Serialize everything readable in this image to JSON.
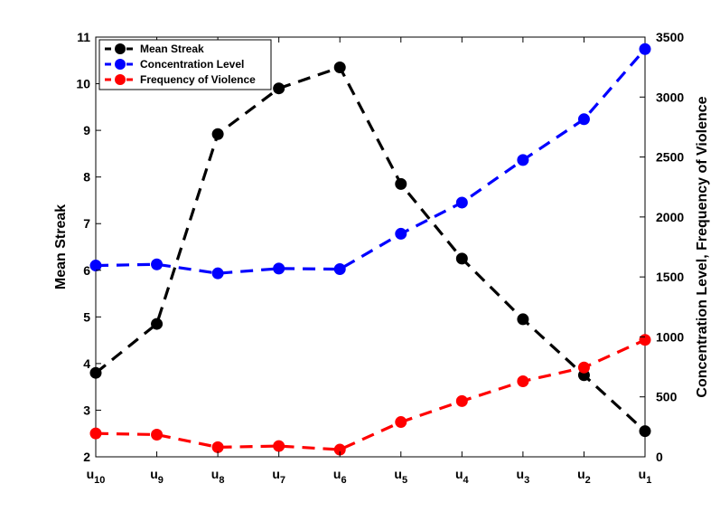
{
  "chart_data": {
    "type": "line",
    "categories": [
      {
        "base": "u",
        "sub": "10"
      },
      {
        "base": "u",
        "sub": "9"
      },
      {
        "base": "u",
        "sub": "8"
      },
      {
        "base": "u",
        "sub": "7"
      },
      {
        "base": "u",
        "sub": "6"
      },
      {
        "base": "u",
        "sub": "5"
      },
      {
        "base": "u",
        "sub": "4"
      },
      {
        "base": "u",
        "sub": "3"
      },
      {
        "base": "u",
        "sub": "2"
      },
      {
        "base": "u",
        "sub": "1"
      }
    ],
    "ylabel_left": "Mean Streak",
    "ylabel_right": "Concentration Level, Frequency of Violence",
    "ylim_left": [
      2,
      11
    ],
    "yticks_left": [
      2,
      3,
      4,
      5,
      6,
      7,
      8,
      9,
      10,
      11
    ],
    "ylim_right": [
      0,
      3500
    ],
    "yticks_right": [
      0,
      500,
      1000,
      1500,
      2000,
      2500,
      3000,
      3500
    ],
    "grid": false,
    "legend_position": "top-left",
    "series": [
      {
        "name": "Mean Streak",
        "axis": "left",
        "color": "#000000",
        "values": [
          3.8,
          4.85,
          8.92,
          9.9,
          10.35,
          7.85,
          6.25,
          4.95,
          3.75,
          2.55
        ]
      },
      {
        "name": "Concentration Level",
        "axis": "right",
        "color": "#0000ff",
        "values": [
          1595,
          1605,
          1530,
          1570,
          1565,
          1860,
          2120,
          2475,
          2815,
          3400
        ]
      },
      {
        "name": "Frequency of Violence",
        "axis": "right",
        "color": "#ff0000",
        "values": [
          195,
          185,
          80,
          90,
          60,
          290,
          465,
          630,
          745,
          975
        ]
      }
    ]
  }
}
